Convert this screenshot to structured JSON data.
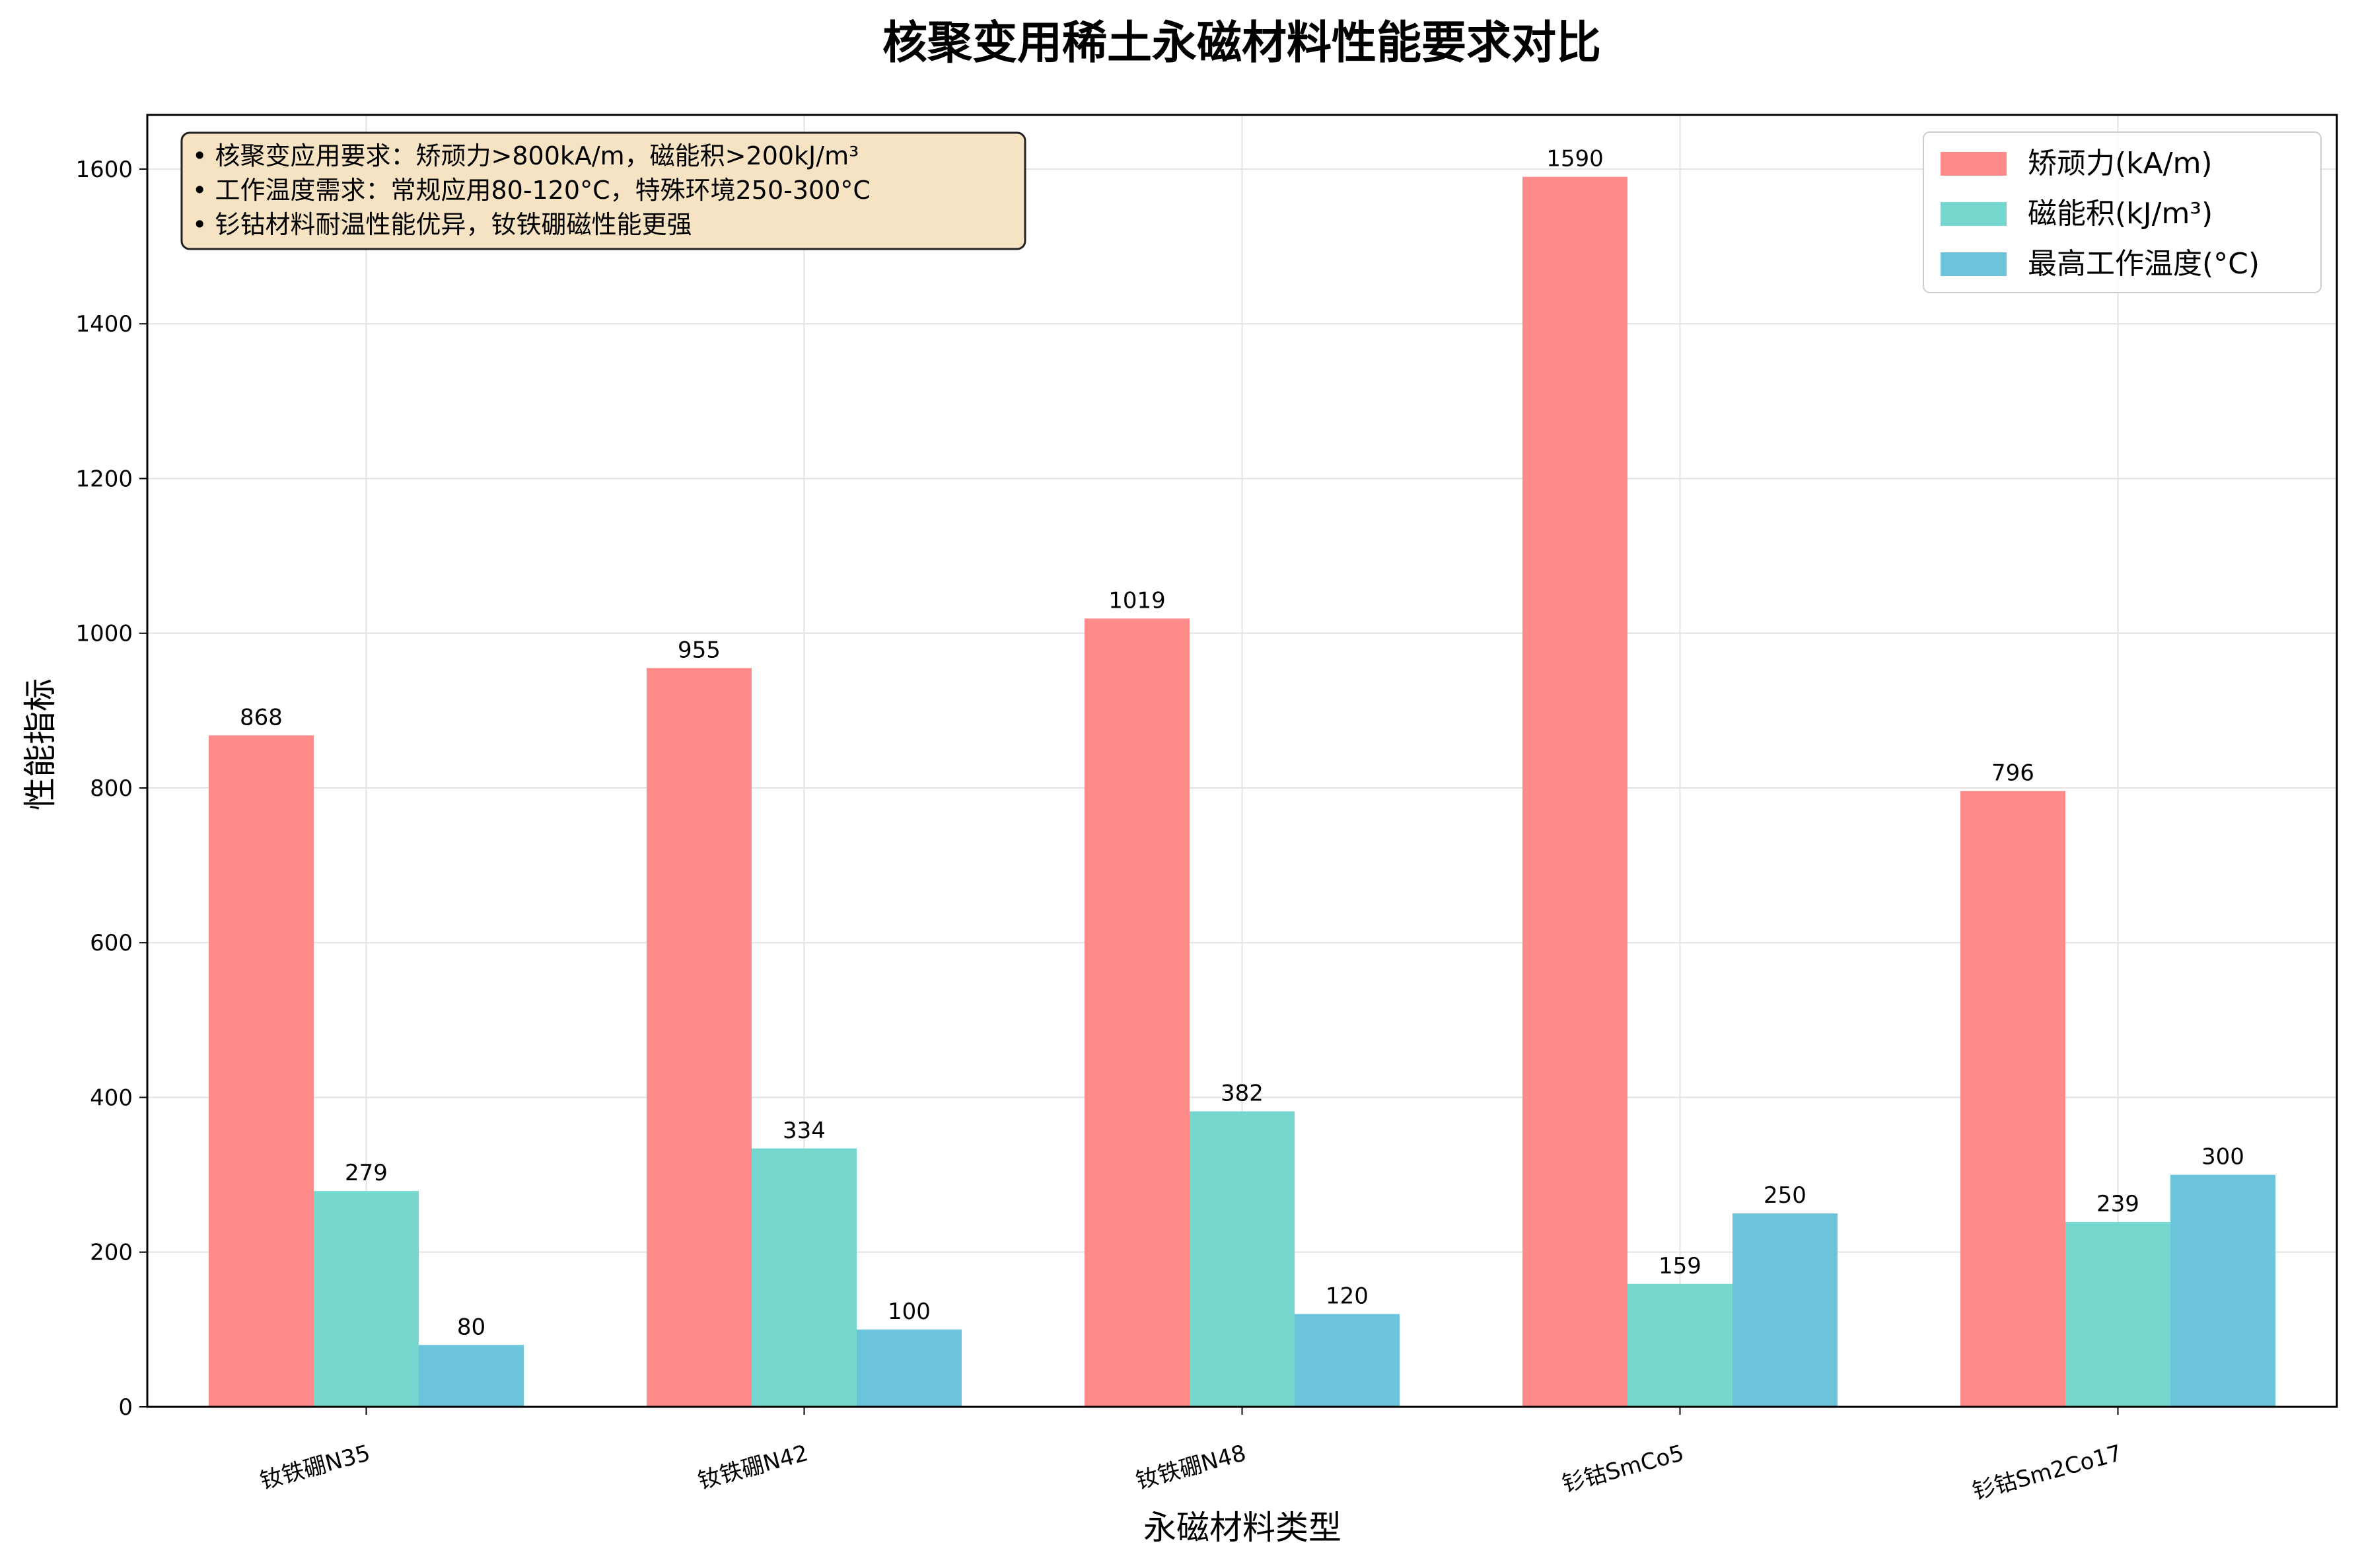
{
  "chart_data": {
    "type": "bar",
    "title": "核聚变用稀土永磁材料性能要求对比",
    "xlabel": "永磁材料类型",
    "ylabel": "性能指标",
    "categories": [
      "钕铁硼N35",
      "钕铁硼N42",
      "钕铁硼N48",
      "钐钴SmCo5",
      "钐钴Sm2Co17"
    ],
    "series": [
      {
        "name": "矫顽力(kA/m)",
        "color": "#ff8a8a",
        "values": [
          868,
          955,
          1019,
          1590,
          796
        ]
      },
      {
        "name": "磁能积(kJ/m³)",
        "color": "#76d7cf",
        "values": [
          279,
          334,
          382,
          159,
          239
        ]
      },
      {
        "name": "最高工作温度(°C)",
        "color": "#6cc4da",
        "values": [
          80,
          100,
          120,
          250,
          300
        ]
      }
    ],
    "ylim": [
      0,
      1670
    ],
    "yticks": [
      0,
      200,
      400,
      600,
      800,
      1000,
      1200,
      1400,
      1600
    ],
    "grid": true,
    "legend_position": "top-right",
    "annotation": {
      "lines": [
        "• 核聚变应用要求：矫顽力>800kA/m，磁能积>200kJ/m³",
        "• 工作温度需求：常规应用80-120°C，特殊环境250-300°C",
        "• 钐钴材料耐温性能优异，钕铁硼磁性能更强"
      ],
      "background": "#f5e3c3"
    }
  }
}
